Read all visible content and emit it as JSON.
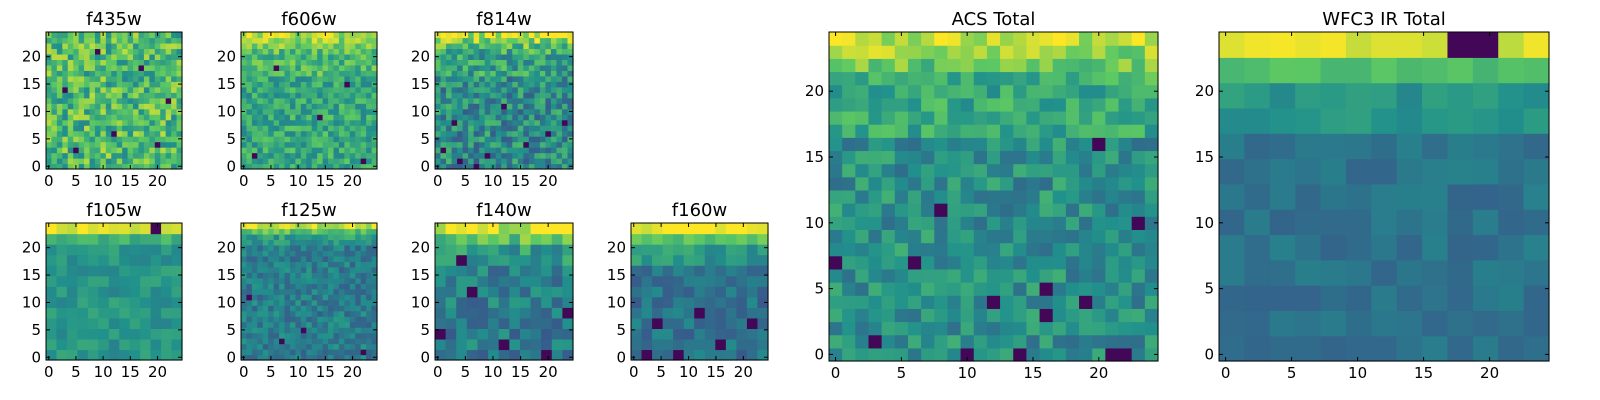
{
  "figure": {
    "colormap": "viridis",
    "colormap_stops": [
      "#440154",
      "#3b528b",
      "#21918c",
      "#5ec962",
      "#fde725"
    ]
  },
  "chart_data": [
    {
      "type": "heatmap",
      "title": "f435w",
      "grid": false,
      "xlim": [
        0,
        24
      ],
      "ylim": [
        0,
        24
      ],
      "xticks": [
        "0",
        "5",
        "10",
        "15",
        "20"
      ],
      "yticks": [
        "0",
        "5",
        "10",
        "15",
        "20"
      ],
      "nx": 25,
      "ny": 25,
      "min": 0,
      "max": 1,
      "pattern": {
        "base": 0.68,
        "top_bias": 0.0,
        "top_rows": 0,
        "noise": 0.22,
        "seed": 11,
        "dark_spots": [
          [
            5,
            3
          ],
          [
            12,
            6
          ],
          [
            20,
            4
          ],
          [
            3,
            14
          ],
          [
            17,
            18
          ],
          [
            9,
            21
          ],
          [
            22,
            12
          ]
        ]
      }
    },
    {
      "type": "heatmap",
      "title": "f606w",
      "grid": false,
      "xlim": [
        0,
        24
      ],
      "ylim": [
        0,
        24
      ],
      "xticks": [
        "0",
        "5",
        "10",
        "15",
        "20"
      ],
      "yticks": [
        "0",
        "5",
        "10",
        "15",
        "20"
      ],
      "nx": 25,
      "ny": 25,
      "min": 0,
      "max": 1,
      "pattern": {
        "base": 0.6,
        "top_bias": 0.3,
        "top_rows": 4,
        "noise": 0.16,
        "seed": 23,
        "dark_spots": [
          [
            2,
            2
          ],
          [
            22,
            1
          ],
          [
            14,
            9
          ],
          [
            6,
            18
          ],
          [
            19,
            15
          ]
        ]
      }
    },
    {
      "type": "heatmap",
      "title": "f814w",
      "grid": false,
      "xlim": [
        0,
        24
      ],
      "ylim": [
        0,
        24
      ],
      "xticks": [
        "0",
        "5",
        "10",
        "15",
        "20"
      ],
      "yticks": [
        "0",
        "5",
        "10",
        "15",
        "20"
      ],
      "nx": 25,
      "ny": 25,
      "min": 0,
      "max": 1,
      "pattern": {
        "base": 0.48,
        "top_bias": 0.42,
        "top_rows": 4,
        "noise": 0.2,
        "seed": 37,
        "dark_spots": [
          [
            1,
            3
          ],
          [
            4,
            1
          ],
          [
            9,
            2
          ],
          [
            16,
            4
          ],
          [
            23,
            8
          ],
          [
            12,
            11
          ],
          [
            3,
            8
          ],
          [
            20,
            6
          ],
          [
            7,
            0
          ]
        ]
      }
    },
    {
      "type": "heatmap",
      "title": "f105w",
      "grid": false,
      "xlim": [
        0,
        24
      ],
      "ylim": [
        0,
        24
      ],
      "xticks": [
        "0",
        "5",
        "10",
        "15",
        "20"
      ],
      "yticks": [
        "0",
        "5",
        "10",
        "15",
        "20"
      ],
      "nx": 13,
      "ny": 13,
      "min": 0,
      "max": 1,
      "pattern": {
        "base": 0.52,
        "top_bias": 0.45,
        "top_rows": 1,
        "noise": 0.08,
        "seed": 41,
        "dark_spots": [
          [
            10,
            12
          ]
        ]
      }
    },
    {
      "type": "heatmap",
      "title": "f125w",
      "grid": false,
      "xlim": [
        0,
        24
      ],
      "ylim": [
        0,
        24
      ],
      "xticks": [
        "0",
        "5",
        "10",
        "15",
        "20"
      ],
      "yticks": [
        "0",
        "5",
        "10",
        "15",
        "20"
      ],
      "nx": 25,
      "ny": 25,
      "min": 0,
      "max": 1,
      "pattern": {
        "base": 0.42,
        "top_bias": 0.5,
        "top_rows": 2,
        "noise": 0.12,
        "seed": 53,
        "dark_spots": [
          [
            1,
            11
          ],
          [
            11,
            5
          ],
          [
            22,
            1
          ],
          [
            7,
            3
          ]
        ]
      }
    },
    {
      "type": "heatmap",
      "title": "f140w",
      "grid": false,
      "xlim": [
        0,
        24
      ],
      "ylim": [
        0,
        24
      ],
      "xticks": [
        "0",
        "5",
        "10",
        "15",
        "20"
      ],
      "yticks": [
        "0",
        "5",
        "10",
        "15",
        "20"
      ],
      "nx": 13,
      "ny": 13,
      "min": 0,
      "max": 1,
      "pattern": {
        "base": 0.42,
        "top_bias": 0.5,
        "top_rows": 2,
        "noise": 0.14,
        "seed": 67,
        "dark_spots": [
          [
            0,
            2
          ],
          [
            3,
            6
          ],
          [
            6,
            1
          ],
          [
            10,
            0
          ],
          [
            12,
            4
          ],
          [
            2,
            9
          ]
        ]
      }
    },
    {
      "type": "heatmap",
      "title": "f160w",
      "grid": false,
      "xlim": [
        0,
        24
      ],
      "ylim": [
        0,
        24
      ],
      "xticks": [
        "0",
        "5",
        "10",
        "15",
        "20"
      ],
      "yticks": [
        "0",
        "5",
        "10",
        "15",
        "20"
      ],
      "nx": 13,
      "ny": 13,
      "min": 0,
      "max": 1,
      "pattern": {
        "base": 0.38,
        "top_bias": 0.6,
        "top_rows": 2,
        "noise": 0.1,
        "seed": 71,
        "dark_spots": [
          [
            1,
            0
          ],
          [
            4,
            0
          ],
          [
            8,
            1
          ],
          [
            11,
            3
          ],
          [
            6,
            4
          ],
          [
            2,
            3
          ]
        ]
      }
    },
    {
      "type": "heatmap",
      "title": "ACS Total",
      "grid": false,
      "xlim": [
        0,
        24
      ],
      "ylim": [
        0,
        24
      ],
      "xticks": [
        "0",
        "5",
        "10",
        "15",
        "20"
      ],
      "yticks": [
        "0",
        "5",
        "10",
        "15",
        "20"
      ],
      "nx": 25,
      "ny": 25,
      "min": 0,
      "max": 1,
      "pattern": {
        "base": 0.5,
        "top_bias": 0.42,
        "top_rows": 4,
        "noise": 0.14,
        "seed": 83,
        "dark_spots": [
          [
            3,
            1
          ],
          [
            10,
            0
          ],
          [
            14,
            0
          ],
          [
            21,
            0
          ],
          [
            22,
            0
          ],
          [
            8,
            11
          ],
          [
            0,
            7
          ],
          [
            6,
            7
          ],
          [
            12,
            4
          ],
          [
            16,
            3
          ],
          [
            19,
            4
          ],
          [
            23,
            10
          ],
          [
            20,
            16
          ],
          [
            16,
            5
          ]
        ]
      }
    },
    {
      "type": "heatmap",
      "title": "WFC3 IR Total",
      "grid": false,
      "xlim": [
        0,
        24
      ],
      "ylim": [
        0,
        24
      ],
      "xticks": [
        "0",
        "5",
        "10",
        "15",
        "20"
      ],
      "yticks": [
        "0",
        "5",
        "10",
        "15",
        "20"
      ],
      "nx": 13,
      "ny": 13,
      "min": 0,
      "max": 1,
      "pattern": {
        "base": 0.38,
        "top_bias": 0.55,
        "top_rows": 2,
        "noise": 0.06,
        "seed": 97,
        "dark_spots": [
          [
            9,
            12
          ],
          [
            10,
            12
          ]
        ]
      }
    }
  ]
}
